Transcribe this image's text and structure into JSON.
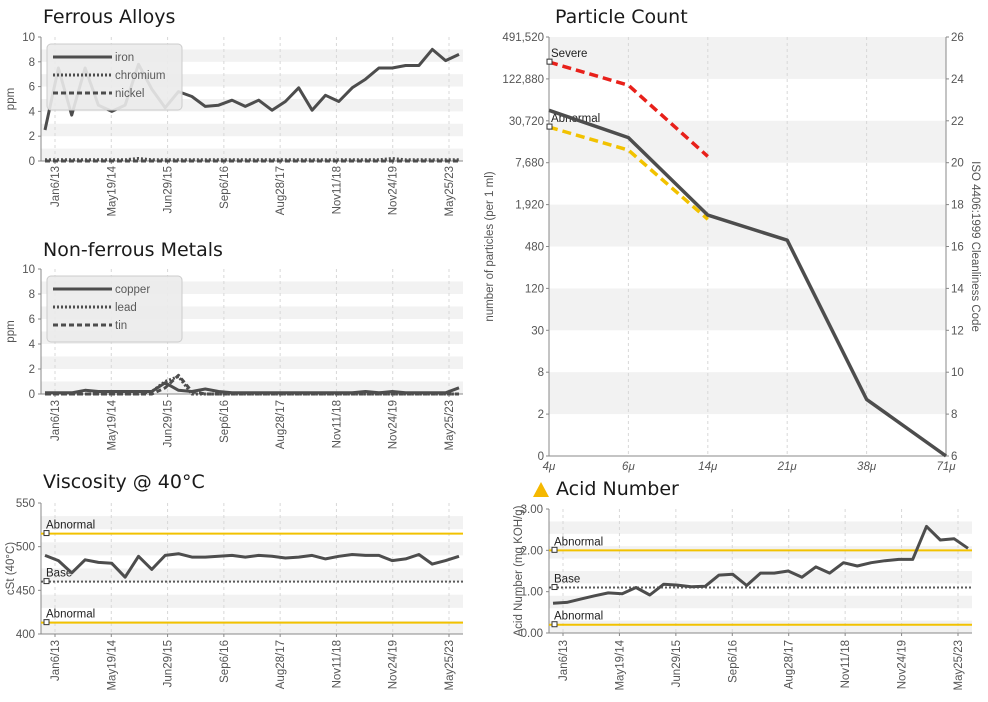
{
  "chart_data": [
    {
      "id": "ferrous",
      "type": "line",
      "title": "Ferrous Alloys",
      "ylabel": "ppm",
      "ylim": [
        0,
        10
      ],
      "yticks": [
        "0",
        "2",
        "4",
        "6",
        "8",
        "10"
      ],
      "xtick_labels": [
        "Jan6/13",
        "May19/14",
        "Jun29/15",
        "Sep6/16",
        "Aug28/17",
        "Nov11/18",
        "Nov24/19",
        "May25/23"
      ],
      "grid": true,
      "legend": "top-left",
      "series": [
        {
          "name": "iron",
          "style": "solid",
          "color": "#4d4d4d",
          "values": [
            2.5,
            7.5,
            3.7,
            7.5,
            4.5,
            4.0,
            4.5,
            7.8,
            5.8,
            4.3,
            5.6,
            5.2,
            4.4,
            4.5,
            4.9,
            4.4,
            4.9,
            4.1,
            4.8,
            5.9,
            4.1,
            5.3,
            4.8,
            5.9,
            6.6,
            7.5,
            7.5,
            7.7,
            7.7,
            9.0,
            8.1,
            8.6
          ]
        },
        {
          "name": "chromium",
          "style": "dotted",
          "color": "#4d4d4d",
          "values": [
            0.1,
            0.1,
            0.1,
            0.1,
            0.1,
            0.1,
            0.1,
            0.2,
            0.1,
            0.1,
            0.1,
            0.1,
            0.1,
            0.1,
            0.1,
            0.1,
            0.1,
            0.1,
            0.1,
            0.1,
            0.1,
            0.1,
            0.1,
            0.1,
            0.1,
            0.1,
            0.2,
            0.1,
            0.1,
            0.1,
            0.1,
            0.1
          ]
        },
        {
          "name": "nickel",
          "style": "dashed",
          "color": "#4d4d4d",
          "values": [
            0,
            0,
            0,
            0,
            0,
            0,
            0,
            0,
            0,
            0,
            0,
            0,
            0,
            0,
            0,
            0,
            0,
            0,
            0,
            0,
            0,
            0,
            0,
            0,
            0,
            0,
            0,
            0,
            0,
            0,
            0,
            0
          ]
        }
      ]
    },
    {
      "id": "nonferrous",
      "type": "line",
      "title": "Non-ferrous Metals",
      "ylabel": "ppm",
      "ylim": [
        0,
        10
      ],
      "yticks": [
        "0",
        "2",
        "4",
        "6",
        "8",
        "10"
      ],
      "xtick_labels": [
        "Jan6/13",
        "May19/14",
        "Jun29/15",
        "Sep6/16",
        "Aug28/17",
        "Nov11/18",
        "Nov24/19",
        "May25/23"
      ],
      "grid": true,
      "legend": "top-left",
      "series": [
        {
          "name": "copper",
          "style": "solid",
          "color": "#4d4d4d",
          "values": [
            0.1,
            0.1,
            0.1,
            0.3,
            0.2,
            0.2,
            0.2,
            0.2,
            0.2,
            0.9,
            0.3,
            0.2,
            0.4,
            0.2,
            0.1,
            0.1,
            0.1,
            0.1,
            0.1,
            0.1,
            0.1,
            0.1,
            0.1,
            0.1,
            0.2,
            0.1,
            0.2,
            0.1,
            0.1,
            0.1,
            0.1,
            0.5
          ]
        },
        {
          "name": "lead",
          "style": "dotted",
          "color": "#4d4d4d",
          "values": [
            0,
            0,
            0,
            0,
            0,
            0,
            0,
            0,
            0.2,
            1.0,
            1.4,
            0,
            0,
            0,
            0,
            0,
            0,
            0,
            0,
            0,
            0,
            0,
            0,
            0,
            0,
            0,
            0,
            0,
            0,
            0,
            0,
            0
          ]
        },
        {
          "name": "tin",
          "style": "dashed",
          "color": "#4d4d4d",
          "values": [
            0,
            0,
            0,
            0,
            0,
            0,
            0,
            0,
            0,
            0.5,
            1.5,
            0.2,
            0,
            0,
            0,
            0,
            0,
            0,
            0,
            0,
            0,
            0,
            0,
            0,
            0,
            0,
            0,
            0,
            0,
            0,
            0,
            0
          ]
        }
      ]
    },
    {
      "id": "viscosity",
      "type": "line",
      "title": "Viscosity @ 40°C",
      "ylabel": "cSt (40°C)",
      "ylim": [
        400,
        550
      ],
      "yticks": [
        "400",
        "450",
        "500",
        "550"
      ],
      "xtick_labels": [
        "Jan6/13",
        "May19/14",
        "Jun29/15",
        "Sep6/16",
        "Aug28/17",
        "Nov11/18",
        "Nov24/19",
        "May25/23"
      ],
      "grid": true,
      "reference_lines": [
        {
          "label": "Abnormal",
          "value": 515,
          "color": "#f2c200",
          "style": "solid"
        },
        {
          "label": "Base",
          "value": 460,
          "color": "#5a5a5a",
          "style": "dotted"
        },
        {
          "label": "Abnormal",
          "value": 413,
          "color": "#f2c200",
          "style": "solid"
        }
      ],
      "series": [
        {
          "name": "",
          "style": "solid",
          "color": "#4d4d4d",
          "values": [
            490,
            484,
            470,
            485,
            482,
            481,
            465,
            489,
            474,
            490,
            492,
            488,
            488,
            489,
            490,
            488,
            490,
            489,
            487,
            488,
            490,
            486,
            489,
            491,
            490,
            490,
            484,
            486,
            491,
            480,
            484,
            489
          ]
        }
      ]
    },
    {
      "id": "particle",
      "type": "line",
      "title": "Particle Count",
      "ylabel": "number of particles (per 1 ml)",
      "y2label": "ISO 4406:1999 Cleanliness Code",
      "yscale": "log",
      "yticks": [
        "0",
        "2",
        "8",
        "30",
        "120",
        "480",
        "1,920",
        "7,680",
        "30,720",
        "122,880",
        "491,520"
      ],
      "y2ticks": [
        "6",
        "8",
        "10",
        "12",
        "14",
        "16",
        "18",
        "20",
        "22",
        "24",
        "26"
      ],
      "categories": [
        "4μ",
        "6μ",
        "14μ",
        "21μ",
        "38μ",
        "71μ"
      ],
      "grid": true,
      "reference_lines": [
        {
          "label": "Severe",
          "color": "#e8201a",
          "style": "dashed",
          "x": [
            "4μ",
            "6μ",
            "14μ"
          ],
          "iso_code": [
            24.8,
            23.7,
            20.3
          ]
        },
        {
          "label": "Abnormal",
          "color": "#f2c200",
          "style": "dashed",
          "x": [
            "4μ",
            "6μ",
            "14μ"
          ],
          "iso_code": [
            21.7,
            20.6,
            17.3
          ]
        }
      ],
      "series": [
        {
          "name": "",
          "style": "solid",
          "color": "#4d4d4d",
          "iso_code": [
            22.5,
            21.2,
            17.5,
            16.3,
            8.7,
            6.0
          ]
        }
      ]
    },
    {
      "id": "acid",
      "type": "line",
      "title": "Acid Number",
      "status_icon": "warning-triangle-icon",
      "status_color": "#f5b800",
      "ylabel": "Acid Number (mg KOH/g)",
      "ylim": [
        0,
        3
      ],
      "yticks": [
        "0.00",
        "1.00",
        "2.00",
        "3.00"
      ],
      "xtick_labels": [
        "Jan6/13",
        "May19/14",
        "Jun29/15",
        "Sep6/16",
        "Aug28/17",
        "Nov11/18",
        "Nov24/19",
        "May25/23"
      ],
      "grid": true,
      "reference_lines": [
        {
          "label": "Abnormal",
          "value": 2.0,
          "color": "#f2c200",
          "style": "solid"
        },
        {
          "label": "Base",
          "value": 1.1,
          "color": "#5a5a5a",
          "style": "dotted"
        },
        {
          "label": "Abnormal",
          "value": 0.2,
          "color": "#f2c200",
          "style": "solid"
        }
      ],
      "series": [
        {
          "name": "",
          "style": "solid",
          "color": "#4d4d4d",
          "values": [
            0.72,
            0.74,
            0.82,
            0.9,
            0.97,
            0.95,
            1.1,
            0.92,
            1.18,
            1.16,
            1.12,
            1.13,
            1.4,
            1.42,
            1.15,
            1.45,
            1.45,
            1.5,
            1.35,
            1.6,
            1.45,
            1.7,
            1.62,
            1.7,
            1.75,
            1.78,
            1.78,
            2.58,
            2.25,
            2.28,
            2.05
          ]
        }
      ]
    }
  ]
}
